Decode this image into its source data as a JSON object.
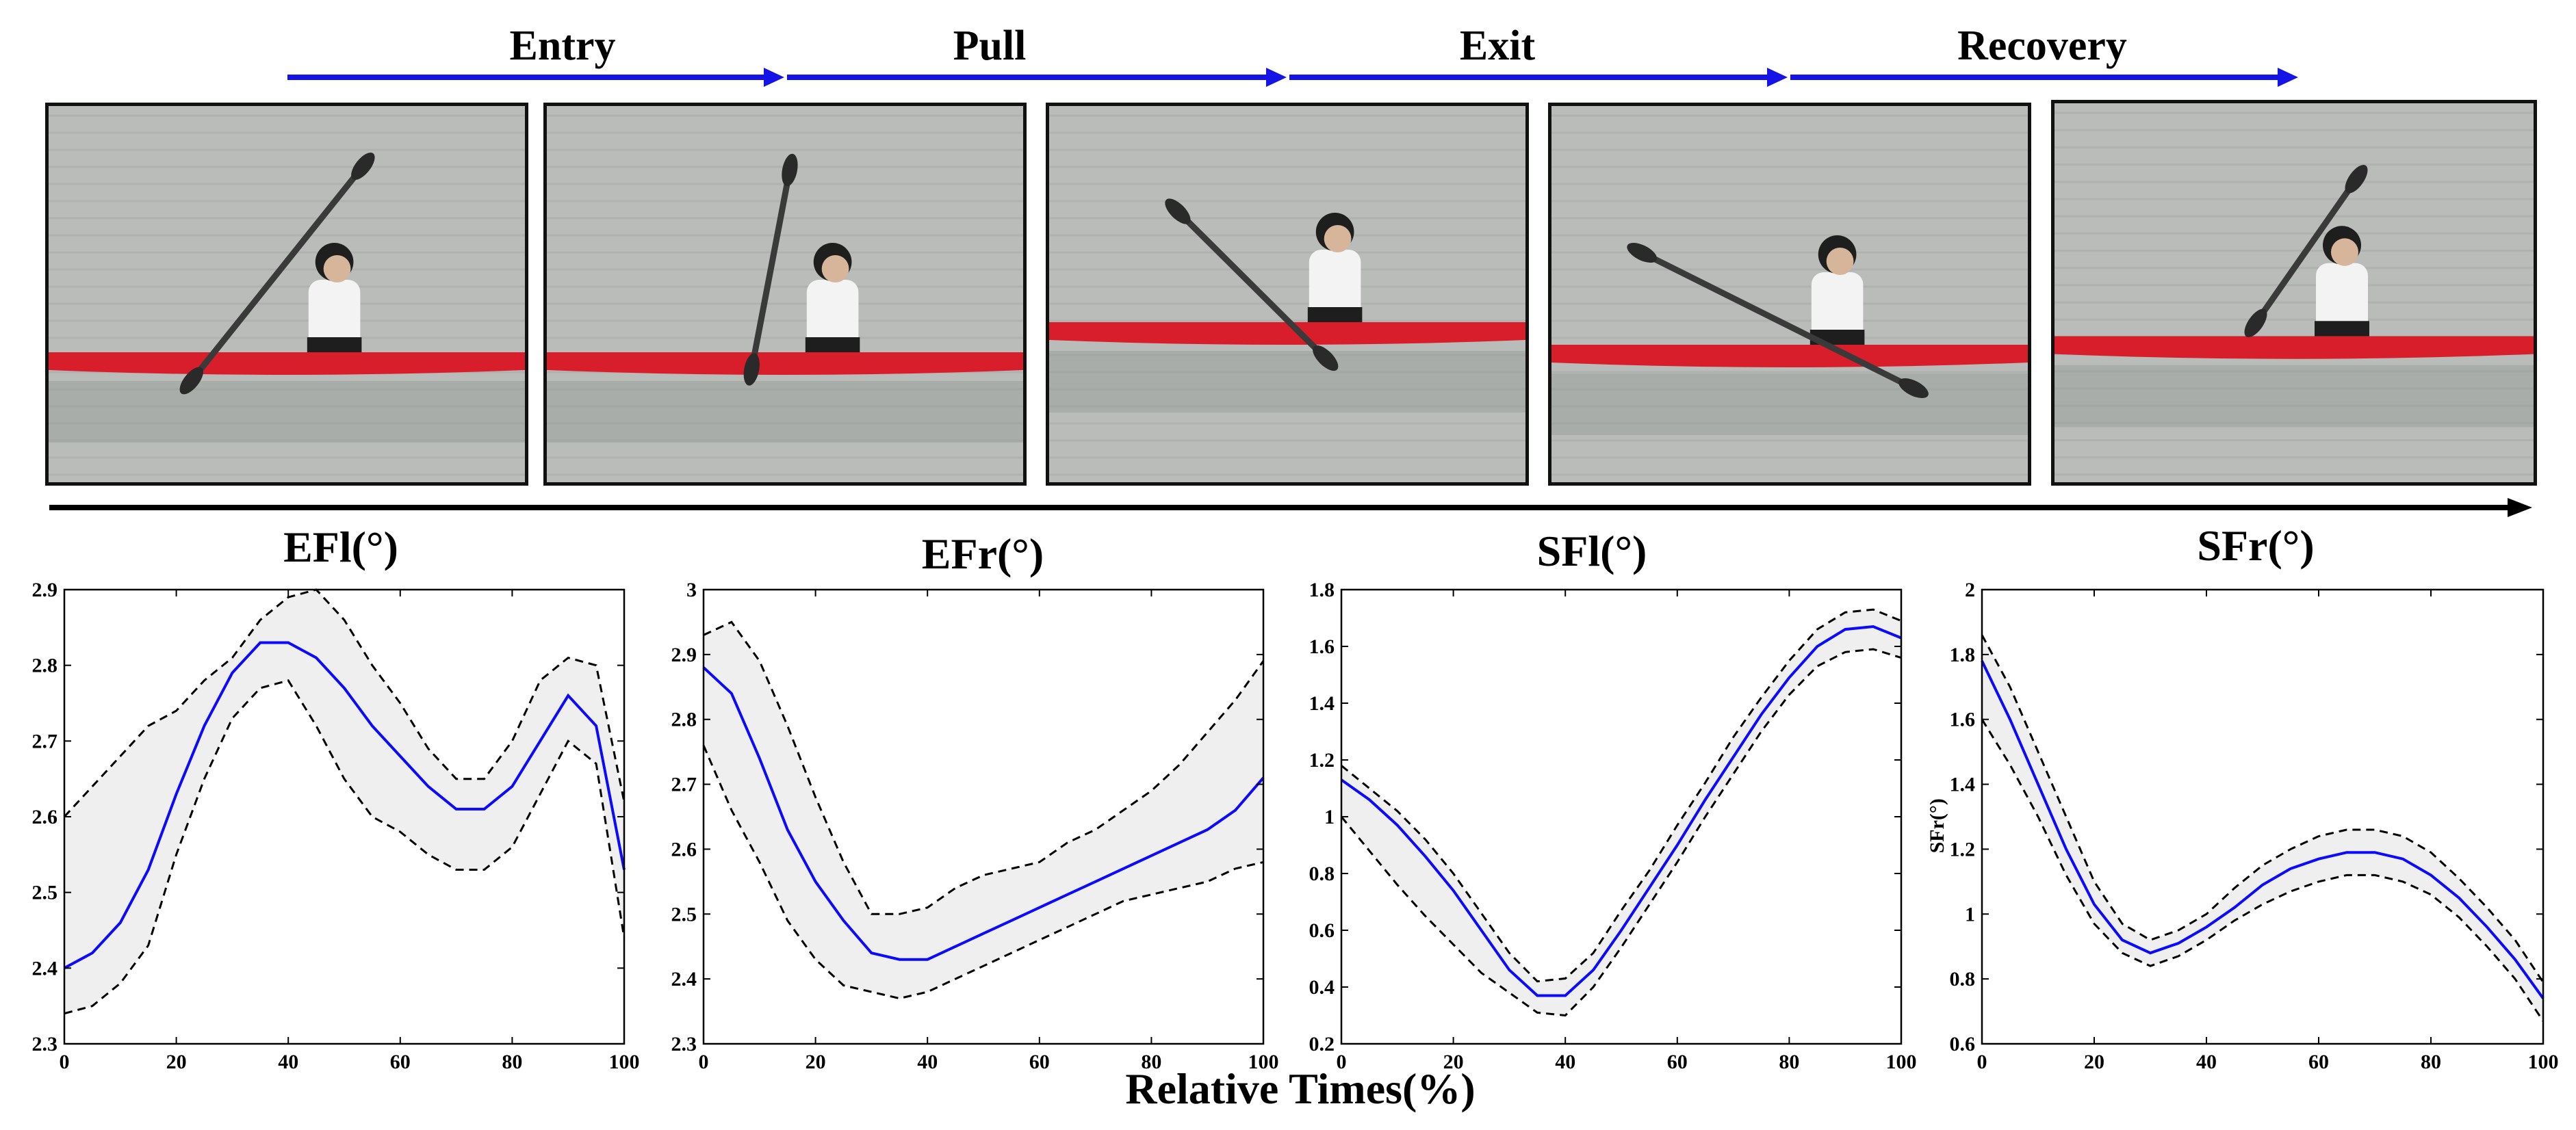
{
  "phases": [
    {
      "label": "Entry"
    },
    {
      "label": "Pull"
    },
    {
      "label": "Exit"
    },
    {
      "label": "Recovery"
    }
  ],
  "colors": {
    "arrow": "#1414e6",
    "mean_line": "#0a0aff",
    "band_fill": "#efefef",
    "band_edge": "#000000",
    "water": "#b9bcb9",
    "kayak": "#d81e2a"
  },
  "x_axis_label": "Relative Times(%)",
  "chart_data": [
    {
      "type": "line",
      "title": "EFl(°)",
      "ylabel": "",
      "xlim": [
        0,
        100
      ],
      "ylim": [
        2.3,
        2.9
      ],
      "xticks": [
        "0",
        "20",
        "40",
        "60",
        "80",
        "100"
      ],
      "yticks": [
        "2.3",
        "2.4",
        "2.5",
        "2.6",
        "2.7",
        "2.8",
        "2.9"
      ],
      "x": [
        0,
        5,
        10,
        15,
        20,
        25,
        30,
        35,
        40,
        45,
        50,
        55,
        60,
        65,
        70,
        75,
        80,
        85,
        90,
        95,
        100
      ],
      "series": [
        {
          "role": "mean",
          "values": [
            2.4,
            2.42,
            2.46,
            2.53,
            2.63,
            2.72,
            2.79,
            2.83,
            2.83,
            2.81,
            2.77,
            2.72,
            2.68,
            2.64,
            2.61,
            2.61,
            2.64,
            2.7,
            2.76,
            2.72,
            2.53
          ]
        },
        {
          "role": "upper",
          "values": [
            2.6,
            2.64,
            2.68,
            2.72,
            2.74,
            2.78,
            2.81,
            2.86,
            2.89,
            2.9,
            2.86,
            2.8,
            2.75,
            2.69,
            2.65,
            2.65,
            2.7,
            2.78,
            2.81,
            2.8,
            2.62
          ]
        },
        {
          "role": "lower",
          "values": [
            2.34,
            2.35,
            2.38,
            2.43,
            2.55,
            2.65,
            2.73,
            2.77,
            2.78,
            2.72,
            2.65,
            2.6,
            2.58,
            2.55,
            2.53,
            2.53,
            2.56,
            2.63,
            2.7,
            2.67,
            2.44
          ]
        }
      ]
    },
    {
      "type": "line",
      "title": "EFr(°)",
      "ylabel": "",
      "xlim": [
        0,
        100
      ],
      "ylim": [
        2.3,
        3.0
      ],
      "xticks": [
        "0",
        "20",
        "40",
        "60",
        "80",
        "100"
      ],
      "yticks": [
        "2.3",
        "2.4",
        "2.5",
        "2.6",
        "2.7",
        "2.8",
        "2.9",
        "3"
      ],
      "x": [
        0,
        5,
        10,
        15,
        20,
        25,
        30,
        35,
        40,
        45,
        50,
        55,
        60,
        65,
        70,
        75,
        80,
        85,
        90,
        95,
        100
      ],
      "series": [
        {
          "role": "mean",
          "values": [
            2.88,
            2.84,
            2.74,
            2.63,
            2.55,
            2.49,
            2.44,
            2.43,
            2.43,
            2.45,
            2.47,
            2.49,
            2.51,
            2.53,
            2.55,
            2.57,
            2.59,
            2.61,
            2.63,
            2.66,
            2.71
          ]
        },
        {
          "role": "upper",
          "values": [
            2.93,
            2.95,
            2.89,
            2.79,
            2.68,
            2.58,
            2.5,
            2.5,
            2.51,
            2.54,
            2.56,
            2.57,
            2.58,
            2.61,
            2.63,
            2.66,
            2.69,
            2.73,
            2.78,
            2.83,
            2.89
          ]
        },
        {
          "role": "lower",
          "values": [
            2.76,
            2.66,
            2.58,
            2.49,
            2.43,
            2.39,
            2.38,
            2.37,
            2.38,
            2.4,
            2.42,
            2.44,
            2.46,
            2.48,
            2.5,
            2.52,
            2.53,
            2.54,
            2.55,
            2.57,
            2.58
          ]
        }
      ]
    },
    {
      "type": "line",
      "title": "SFl(°)",
      "ylabel": "",
      "xlim": [
        0,
        100
      ],
      "ylim": [
        0.2,
        1.8
      ],
      "xticks": [
        "0",
        "20",
        "40",
        "60",
        "80",
        "100"
      ],
      "yticks": [
        "0.2",
        "0.4",
        "0.6",
        "0.8",
        "1",
        "1.2",
        "1.4",
        "1.6",
        "1.8"
      ],
      "x": [
        0,
        5,
        10,
        15,
        20,
        25,
        30,
        35,
        40,
        45,
        50,
        55,
        60,
        65,
        70,
        75,
        80,
        85,
        90,
        95,
        100
      ],
      "series": [
        {
          "role": "mean",
          "values": [
            1.13,
            1.06,
            0.97,
            0.86,
            0.74,
            0.6,
            0.46,
            0.37,
            0.37,
            0.46,
            0.6,
            0.75,
            0.9,
            1.06,
            1.21,
            1.36,
            1.49,
            1.6,
            1.66,
            1.67,
            1.63
          ]
        },
        {
          "role": "upper",
          "values": [
            1.18,
            1.1,
            1.02,
            0.92,
            0.8,
            0.66,
            0.52,
            0.42,
            0.43,
            0.52,
            0.67,
            0.81,
            0.97,
            1.12,
            1.28,
            1.42,
            1.55,
            1.66,
            1.72,
            1.73,
            1.69
          ]
        },
        {
          "role": "lower",
          "values": [
            1.0,
            0.88,
            0.76,
            0.65,
            0.55,
            0.45,
            0.38,
            0.31,
            0.3,
            0.4,
            0.54,
            0.69,
            0.84,
            1.0,
            1.15,
            1.3,
            1.43,
            1.53,
            1.58,
            1.59,
            1.56
          ]
        }
      ]
    },
    {
      "type": "line",
      "title": "SFr(°)",
      "ylabel": "SFr(°)",
      "xlim": [
        0,
        100
      ],
      "ylim": [
        0.6,
        2.0
      ],
      "xticks": [
        "0",
        "20",
        "40",
        "60",
        "80",
        "100"
      ],
      "yticks": [
        "0.6",
        "0.8",
        "1",
        "1.2",
        "1.4",
        "1.6",
        "1.8",
        "2"
      ],
      "x": [
        0,
        5,
        10,
        15,
        20,
        25,
        30,
        35,
        40,
        45,
        50,
        55,
        60,
        65,
        70,
        75,
        80,
        85,
        90,
        95,
        100
      ],
      "series": [
        {
          "role": "mean",
          "values": [
            1.78,
            1.6,
            1.4,
            1.2,
            1.03,
            0.92,
            0.88,
            0.91,
            0.96,
            1.02,
            1.09,
            1.14,
            1.17,
            1.19,
            1.19,
            1.17,
            1.12,
            1.05,
            0.96,
            0.86,
            0.74
          ]
        },
        {
          "role": "upper",
          "values": [
            1.86,
            1.7,
            1.5,
            1.3,
            1.1,
            0.97,
            0.92,
            0.95,
            1.0,
            1.08,
            1.15,
            1.2,
            1.24,
            1.26,
            1.26,
            1.24,
            1.19,
            1.11,
            1.02,
            0.92,
            0.79
          ]
        },
        {
          "role": "lower",
          "values": [
            1.6,
            1.46,
            1.3,
            1.12,
            0.97,
            0.88,
            0.84,
            0.87,
            0.92,
            0.98,
            1.03,
            1.07,
            1.1,
            1.12,
            1.12,
            1.1,
            1.06,
            0.99,
            0.9,
            0.8,
            0.67
          ]
        }
      ]
    }
  ]
}
